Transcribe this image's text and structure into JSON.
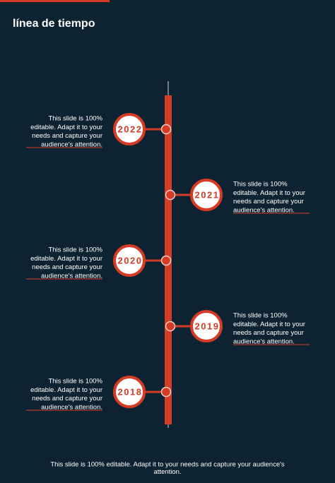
{
  "header": {
    "title": "línea de tiempo"
  },
  "timeline": [
    {
      "year": "2022",
      "side": "left",
      "lines": [
        "This slide is 100%",
        "editable. Adapt it to your",
        "needs and capture your",
        "audience's attention."
      ]
    },
    {
      "year": "2021",
      "side": "right",
      "lines": [
        "This slide is 100%",
        "editable. Adapt it to your",
        "needs and capture your",
        "audience's attention."
      ]
    },
    {
      "year": "2020",
      "side": "left",
      "lines": [
        "This slide is 100%",
        "editable. Adapt it to your",
        "needs and capture your",
        "audience's attention."
      ]
    },
    {
      "year": "2019",
      "side": "right",
      "lines": [
        "This slide is 100%",
        "editable. Adapt it to your",
        "needs and capture your",
        "audience's attention."
      ]
    },
    {
      "year": "2018",
      "side": "left",
      "lines": [
        "This slide is 100%",
        "editable. Adapt it to your",
        "needs and capture your",
        "audience's attention."
      ]
    }
  ],
  "footer": {
    "lines": [
      "This slide is 100% editable. Adapt it to your needs and capture your audience's",
      "attention."
    ]
  }
}
